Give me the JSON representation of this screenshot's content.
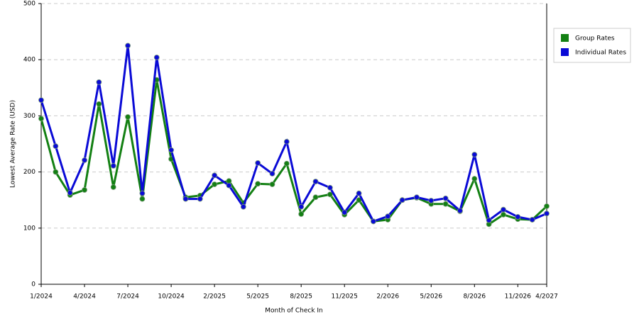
{
  "chart_data": {
    "type": "line",
    "x_label": "Month of Check In",
    "y_label": "Lowest Average Rate (USD)",
    "categories": [
      "1/2024",
      null,
      null,
      "4/2024",
      null,
      null,
      "7/2024",
      null,
      null,
      "10/2024",
      null,
      null,
      "2/2025",
      null,
      null,
      "5/2025",
      null,
      null,
      "8/2025",
      null,
      null,
      "11/2025",
      null,
      null,
      "2/2026",
      null,
      null,
      "5/2026",
      null,
      null,
      "8/2026",
      null,
      null,
      "11/2026",
      null,
      "4/2027"
    ],
    "series": [
      {
        "name": "Group Rates",
        "color": "#138013",
        "values": [
          295,
          200,
          159,
          168,
          321,
          173,
          298,
          152,
          364,
          223,
          155,
          158,
          178,
          184,
          145,
          179,
          178,
          215,
          125,
          155,
          160,
          124,
          150,
          112,
          115,
          150,
          154,
          143,
          143,
          130,
          188,
          107,
          124,
          116,
          115,
          139
        ]
      },
      {
        "name": "Individual Rates",
        "color": "#0a0ad6",
        "values": [
          328,
          246,
          163,
          221,
          360,
          211,
          425,
          162,
          404,
          239,
          152,
          152,
          194,
          176,
          138,
          216,
          197,
          254,
          138,
          183,
          172,
          128,
          162,
          112,
          121,
          150,
          155,
          149,
          153,
          131,
          231,
          114,
          133,
          120,
          115,
          126
        ]
      }
    ],
    "ylim": [
      0,
      500
    ],
    "yticks": [
      0,
      100,
      200,
      300,
      400,
      500
    ],
    "grid": true
  }
}
